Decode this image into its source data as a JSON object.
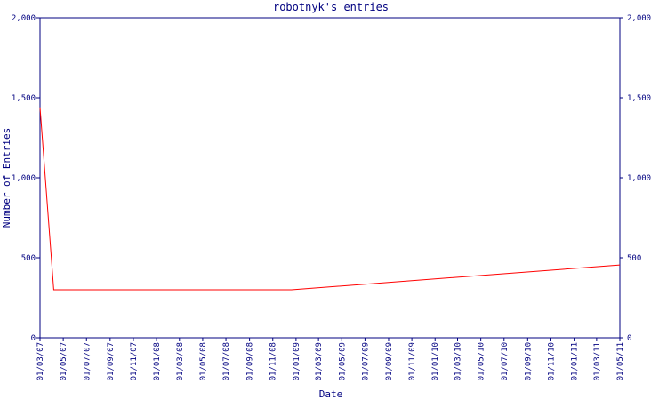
{
  "chart_data": {
    "type": "line",
    "title": "robotnyk's entries",
    "x_label": "Date",
    "y_label": "Number of Entries",
    "x": [
      "01/03/07",
      "06/04/07",
      "20/12/08",
      "01/05/11"
    ],
    "series": [
      {
        "name": "entries",
        "color": "#ff0000",
        "values": [
          1440,
          300,
          300,
          455
        ]
      }
    ],
    "xlim": [
      "01/03/07",
      "01/05/11"
    ],
    "xticks": [
      "01/03/07",
      "01/05/07",
      "01/07/07",
      "01/09/07",
      "01/11/07",
      "01/01/08",
      "01/03/08",
      "01/05/08",
      "01/07/08",
      "01/09/08",
      "01/11/08",
      "01/01/09",
      "01/03/09",
      "01/05/09",
      "01/07/09",
      "01/09/09",
      "01/11/09",
      "01/01/10",
      "01/03/10",
      "01/05/10",
      "01/07/10",
      "01/09/10",
      "01/11/10",
      "01/01/11",
      "01/03/11",
      "01/05/11"
    ],
    "ylim": [
      0,
      2000
    ],
    "yticks": [
      0,
      500,
      {
        "value": 1000,
        "label": "1,000"
      },
      {
        "value": 1500,
        "label": "1,500"
      },
      {
        "value": 2000,
        "label": "2,000"
      }
    ],
    "axis_color": "#000080",
    "mirror_y_axis": true
  }
}
